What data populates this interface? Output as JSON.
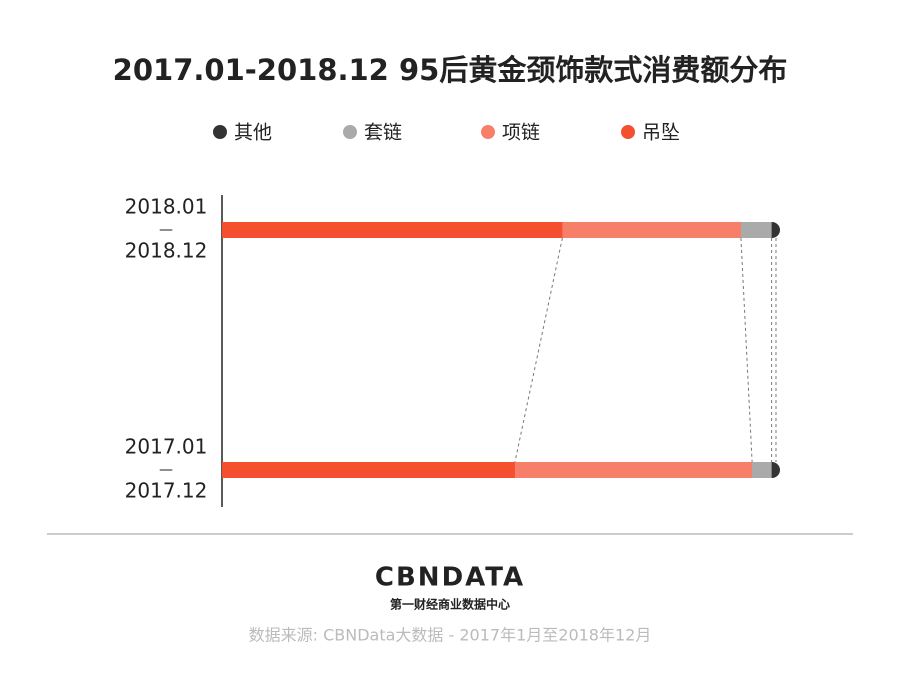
{
  "chart_data": {
    "type": "stacked-bar-horizontal",
    "title": "2017.01-2018.12 95后黄金颈饰款式消费额分布",
    "categories": [
      [
        "2018.01",
        "—",
        "2018.12"
      ],
      [
        "2017.01",
        "—",
        "2017.12"
      ]
    ],
    "series": [
      {
        "name": "其他",
        "color": "#333333",
        "values": [
          1.5,
          1.5
        ]
      },
      {
        "name": "套链",
        "color": "#aaaaaa",
        "values": [
          5.5,
          3.5
        ]
      },
      {
        "name": "项链",
        "color": "#f77f6a",
        "values": [
          32,
          42.5
        ]
      },
      {
        "name": "吊坠",
        "color": "#f4502f",
        "values": [
          61,
          52.5
        ]
      }
    ],
    "xlim": [
      0,
      100
    ],
    "logo": "CBNDATA",
    "logo_subtitle": "第一财经商业数据中心",
    "source": "数据来源: CBNData大数据 - 2017年1月至2018年12月"
  }
}
